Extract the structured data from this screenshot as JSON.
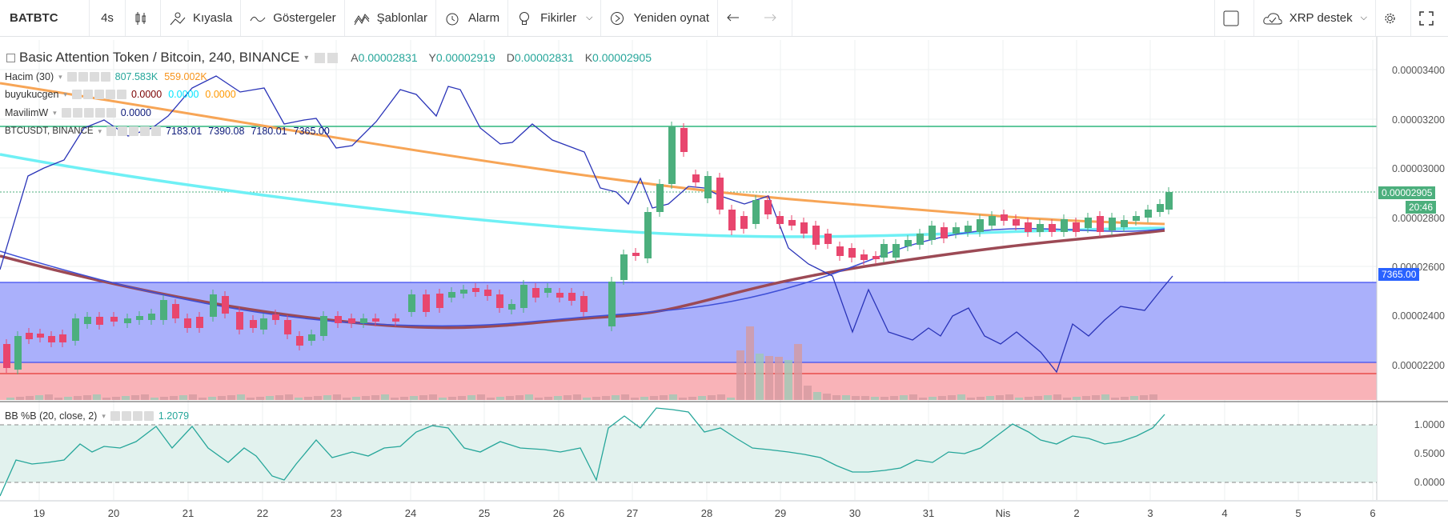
{
  "toolbar": {
    "symbol": "BATBTC",
    "interval": "4s",
    "compare": "Kıyasla",
    "indicators": "Göstergeler",
    "templates": "Şablonlar",
    "alarm": "Alarm",
    "ideas": "Fikirler",
    "replay": "Yeniden oynat",
    "xrp_label": "XRP destek"
  },
  "main": {
    "title": "Basic Attention Token / Bitcoin, 240, BINANCE",
    "o_label": "A",
    "o_value": "0.00002831",
    "h_label": "Y",
    "h_value": "0.00002919",
    "l_label": "D",
    "l_value": "0.00002831",
    "c_label": "K",
    "c_value": "0.00002905"
  },
  "legends": [
    {
      "name": "Hacim (30)",
      "v1": "807.583K",
      "v2": "559.002K",
      "c1": "#26a69a",
      "c2": "#f7931a"
    },
    {
      "name": "buyukucgen",
      "v1": "0.0000",
      "v2": "0.0000",
      "v3": "0.0000",
      "c1": "#b71c1c",
      "c2": "#00e5ff",
      "c3": "#ff9800"
    },
    {
      "name": "MavilimW",
      "v1": "0.0000",
      "c1": "#1a237e"
    },
    {
      "name": "BTCUSDT, BINANCE",
      "v1": "7183.01",
      "v2": "7390.08",
      "v3": "7180.01",
      "v4": "7365.00",
      "c1": "#1a237e"
    }
  ],
  "price_axis": [
    "0.00003400",
    "0.00003200",
    "0.00003000",
    "0.00002800",
    "0.00002600",
    "0.00002400",
    "0.00002200"
  ],
  "price_tags": {
    "last": "0.00002905",
    "countdown": "20:46",
    "btc": "7365.00"
  },
  "bb": {
    "name": "BB %B (20, close, 2)",
    "value": "1.2079",
    "axis": [
      "1.0000",
      "0.5000",
      "0.0000"
    ]
  },
  "dates": [
    "19",
    "20",
    "21",
    "22",
    "23",
    "24",
    "25",
    "26",
    "27",
    "28",
    "29",
    "30",
    "31",
    "Nis",
    "2",
    "3",
    "4",
    "5",
    "6"
  ],
  "colors": {
    "up": "#4caf7d",
    "down": "#e8466e",
    "accent": "#2962ff"
  }
}
